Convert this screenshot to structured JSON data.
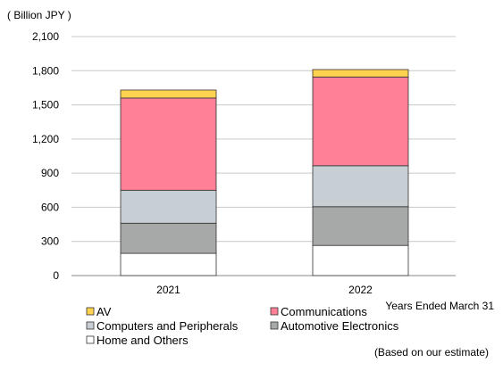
{
  "chart_data": {
    "type": "bar",
    "stacked": true,
    "unit_label": "( Billion JPY )",
    "xlabel": "Years Ended March 31",
    "note": "(Based on our estimate)",
    "categories": [
      "2021",
      "2022"
    ],
    "ylim": [
      0,
      2100
    ],
    "yticks": [
      0,
      300,
      600,
      900,
      1200,
      1500,
      1800,
      2100
    ],
    "ytick_labels": [
      "0",
      "300",
      "600",
      "900",
      "1,200",
      "1,500",
      "1,800",
      "2,100"
    ],
    "grid": true,
    "legend_position": "bottom",
    "series": [
      {
        "name": "Home and Others",
        "values": [
          195,
          265
        ],
        "color": "#ffffff"
      },
      {
        "name": "Automotive Electronics",
        "values": [
          265,
          340
        ],
        "color": "#a6a9a8"
      },
      {
        "name": "Computers and Peripherals",
        "values": [
          290,
          360
        ],
        "color": "#c8cfd4"
      },
      {
        "name": "Communications",
        "values": [
          810,
          780
        ],
        "color": "#ff8097"
      },
      {
        "name": "AV",
        "values": [
          70,
          65
        ],
        "color": "#ffd24f"
      }
    ],
    "legend_order": [
      "AV",
      "Communications",
      "Computers and Peripherals",
      "Automotive Electronics",
      "Home and Others"
    ]
  }
}
